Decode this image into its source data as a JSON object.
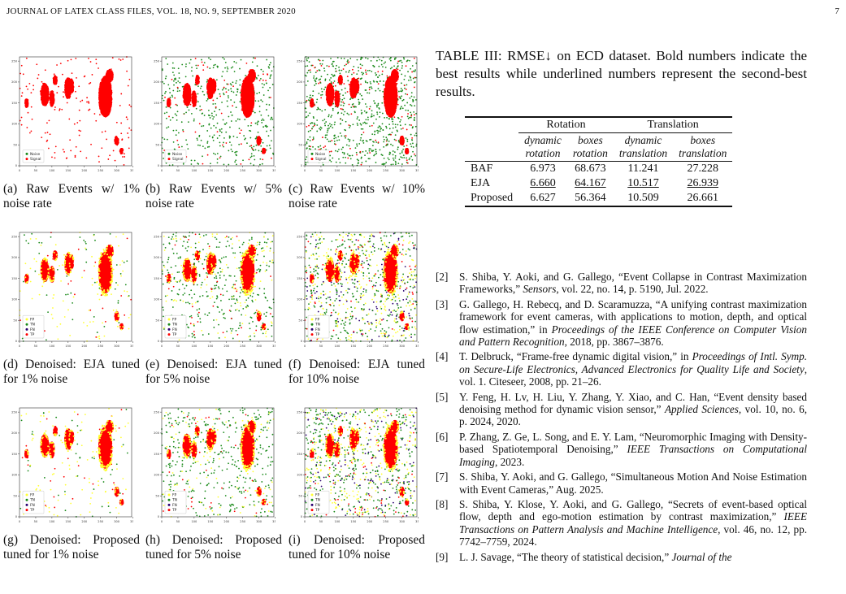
{
  "header": {
    "journal": "JOURNAL OF LATEX CLASS FILES, VOL. 18, NO. 9, SEPTEMBER 2020",
    "page_number": "7"
  },
  "colors": {
    "noise": "#1a8a1a",
    "signal": "#ff0000",
    "fp": "#ffff33",
    "tn": "#1a8a1a",
    "fn": "#2a0070",
    "tp": "#ff0000"
  },
  "figure": {
    "panels": [
      {
        "caption": "(a) Raw Events w/ 1% noise rate",
        "legend": [
          "Noise",
          "Signal"
        ],
        "kind": "raw",
        "level": 1
      },
      {
        "caption": "(b) Raw Events w/ 5% noise rate",
        "legend": [
          "Noise",
          "Signal"
        ],
        "kind": "raw",
        "level": 5
      },
      {
        "caption": "(c) Raw Events w/ 10% noise rate",
        "legend": [
          "Noise",
          "Signal"
        ],
        "kind": "raw",
        "level": 10
      },
      {
        "caption": "(d) Denoised: EJA tuned for 1% noise",
        "legend": [
          "FP",
          "TN",
          "FN",
          "TP"
        ],
        "kind": "den",
        "level": 1
      },
      {
        "caption": "(e) Denoised: EJA tuned for 5% noise",
        "legend": [
          "FP",
          "TN",
          "FN",
          "TP"
        ],
        "kind": "den",
        "level": 5
      },
      {
        "caption": "(f) Denoised: EJA tuned for 10% noise",
        "legend": [
          "FP",
          "TN",
          "FN",
          "TP"
        ],
        "kind": "den",
        "level": 10
      },
      {
        "caption": "(g) Denoised: Proposed tuned for 1% noise",
        "legend": [
          "FP",
          "TN",
          "FN",
          "TP"
        ],
        "kind": "den",
        "level": 1
      },
      {
        "caption": "(h) Denoised: Proposed tuned for 5% noise",
        "legend": [
          "FP",
          "TN",
          "FN",
          "TP"
        ],
        "kind": "den",
        "level": 5
      },
      {
        "caption": "(i) Denoised: Proposed tuned for 10% noise",
        "legend": [
          "FP",
          "TN",
          "FN",
          "TP"
        ],
        "kind": "den",
        "level": 10
      }
    ],
    "x_ticks": [
      "0",
      "50",
      "100",
      "150",
      "200",
      "250",
      "300",
      "350"
    ],
    "y_ticks": [
      "0",
      "50",
      "100",
      "150",
      "200",
      "250"
    ]
  },
  "table": {
    "caption": "TABLE III: RMSE↓ on ECD dataset. Bold numbers indicate the best results while underlined numbers represent the second-best results.",
    "group_rotation": "Rotation",
    "group_translation": "Translation",
    "subheaders": [
      [
        "dynamic",
        "rotation"
      ],
      [
        "boxes",
        "rotation"
      ],
      [
        "dynamic",
        "translation"
      ],
      [
        "boxes",
        "translation"
      ]
    ],
    "rows": [
      {
        "method": "BAF",
        "values": [
          "6.973",
          "68.673",
          "11.241",
          "27.228"
        ]
      },
      {
        "method": "EJA",
        "values": [
          "6.660",
          "64.167",
          "10.517",
          "26.939"
        ]
      },
      {
        "method": "Proposed",
        "values": [
          "6.627",
          "56.364",
          "10.509",
          "26.661"
        ]
      }
    ]
  },
  "references": [
    {
      "num": "[2]",
      "pre": "S. Shiba, Y. Aoki, and G. Gallego, “Event Collapse in Contrast Maximization Frameworks,” ",
      "venue": "Sensors",
      "post": ", vol. 22, no. 14, p. 5190, Jul. 2022."
    },
    {
      "num": "[3]",
      "pre": "G. Gallego, H. Rebecq, and D. Scaramuzza, “A unifying contrast maximization framework for event cameras, with applications to motion, depth, and optical flow estimation,” in ",
      "venue": "Proceedings of the IEEE Conference on Computer Vision and Pattern Recognition",
      "post": ", 2018, pp. 3867–3876."
    },
    {
      "num": "[4]",
      "pre": "T. Delbruck, “Frame-free dynamic digital vision,” in ",
      "venue": "Proceedings of Intl. Symp. on Secure-Life Electronics, Advanced Electronics for Quality Life and Society",
      "post": ", vol. 1.   Citeseer, 2008, pp. 21–26."
    },
    {
      "num": "[5]",
      "pre": "Y. Feng, H. Lv, H. Liu, Y. Zhang, Y. Xiao, and C. Han, “Event density based denoising method for dynamic vision sensor,” ",
      "venue": "Applied Sciences",
      "post": ", vol. 10, no. 6, p. 2024, 2020."
    },
    {
      "num": "[6]",
      "pre": "P. Zhang, Z. Ge, L. Song, and E. Y. Lam, “Neuromorphic Imaging with Density-based Spatiotemporal Denoising,” ",
      "venue": "IEEE Transactions on Computational Imaging",
      "post": ", 2023."
    },
    {
      "num": "[7]",
      "pre": "S. Shiba, Y. Aoki, and G. Gallego, “Simultaneous Motion And Noise Estimation with Event Cameras,” Aug. 2025.",
      "venue": "",
      "post": ""
    },
    {
      "num": "[8]",
      "pre": "S. Shiba, Y. Klose, Y. Aoki, and G. Gallego, “Secrets of event-based optical flow, depth and ego-motion estimation by contrast maximization,” ",
      "venue": "IEEE Transactions on Pattern Analysis and Machine Intelligence",
      "post": ", vol. 46, no. 12, pp. 7742–7759, 2024."
    },
    {
      "num": "[9]",
      "pre": "L. J. Savage, “The theory of statistical decision,” ",
      "venue": "Journal of the",
      "post": ""
    }
  ]
}
